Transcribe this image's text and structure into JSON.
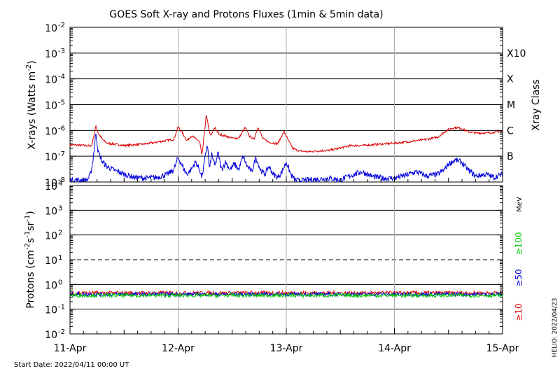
{
  "chart_data": [
    {
      "type": "line",
      "title": "GOES Soft X-ray and Protons Fluxes   (1min & 5min data)",
      "ylabel": "X-rays (Watts m",
      "ylabel_sup": "-2",
      "ylabel_close": ")",
      "y_scale": "log",
      "ylim": [
        1e-08,
        0.01
      ],
      "ytick_exponents": [
        "-2",
        "-3",
        "-4",
        "-5",
        "-6",
        "-7",
        "-8"
      ],
      "ytick_values": [
        0.01,
        0.001,
        0.0001,
        1e-05,
        1e-06,
        1e-07,
        1e-08
      ],
      "xray_class_label": "Xray Class",
      "xray_classes": [
        {
          "label": "X10",
          "value": 0.001
        },
        {
          "label": "X",
          "value": 0.0001
        },
        {
          "label": "M",
          "value": 1e-05
        },
        {
          "label": "C",
          "value": 1e-06
        },
        {
          "label": "B",
          "value": 1e-07
        }
      ],
      "grid": true,
      "series": [
        {
          "color": "#dd0000",
          "x": [
            0.0,
            0.2,
            0.24,
            0.26,
            0.3,
            0.34,
            0.4,
            0.5,
            0.6,
            0.7,
            0.8,
            0.88,
            0.96,
            1.0,
            1.04,
            1.08,
            1.12,
            1.16,
            1.2,
            1.22,
            1.26,
            1.28,
            1.3,
            1.34,
            1.38,
            1.44,
            1.5,
            1.56,
            1.62,
            1.66,
            1.7,
            1.74,
            1.78,
            1.84,
            1.92,
            1.98,
            2.02,
            2.06,
            2.12,
            2.2,
            2.3,
            2.4,
            2.5,
            2.6,
            2.7,
            2.8,
            2.9,
            3.0,
            3.1,
            3.2,
            3.3,
            3.4,
            3.45,
            3.5,
            3.56,
            3.62,
            3.68,
            3.75,
            3.85,
            3.92,
            4.0
          ],
          "y": [
            2.8e-07,
            2.5e-07,
            1.5e-06,
            8e-07,
            4.5e-07,
            3.2e-07,
            3e-07,
            2.6e-07,
            2.8e-07,
            3e-07,
            3.5e-07,
            4e-07,
            4.5e-07,
            1.4e-06,
            8e-07,
            4e-07,
            6e-07,
            5e-07,
            3.5e-07,
            1e-07,
            4e-06,
            1.4e-06,
            6e-07,
            1.3e-06,
            7e-07,
            6e-07,
            5e-07,
            5e-07,
            1.3e-06,
            6e-07,
            4.5e-07,
            1.4e-06,
            5e-07,
            3.5e-07,
            3e-07,
            9e-07,
            4e-07,
            2e-07,
            1.6e-07,
            1.5e-07,
            1.6e-07,
            1.7e-07,
            2.1e-07,
            2.6e-07,
            2.6e-07,
            2.8e-07,
            3e-07,
            3.2e-07,
            3.5e-07,
            4e-07,
            4.5e-07,
            5.5e-07,
            8e-07,
            1.1e-06,
            1.3e-06,
            1.2e-06,
            9e-07,
            8e-07,
            8e-07,
            8.5e-07,
            9.5e-07
          ]
        },
        {
          "color": "#0000dd",
          "x": [
            0.0,
            0.16,
            0.19,
            0.21,
            0.24,
            0.26,
            0.3,
            0.34,
            0.4,
            0.5,
            0.6,
            0.7,
            0.8,
            0.9,
            0.96,
            1.0,
            1.04,
            1.08,
            1.12,
            1.16,
            1.2,
            1.22,
            1.24,
            1.27,
            1.29,
            1.31,
            1.34,
            1.37,
            1.4,
            1.44,
            1.48,
            1.52,
            1.56,
            1.6,
            1.64,
            1.68,
            1.72,
            1.76,
            1.8,
            1.84,
            1.88,
            1.92,
            1.96,
            2.0,
            2.04,
            2.08,
            2.14,
            2.2,
            2.3,
            2.4,
            2.5,
            2.6,
            2.7,
            2.8,
            2.9,
            3.0,
            3.1,
            3.2,
            3.3,
            3.4,
            3.46,
            3.5,
            3.56,
            3.62,
            3.68,
            3.75,
            3.85,
            3.92,
            4.0
          ],
          "y": [
            1.2e-08,
            1.2e-08,
            2e-08,
            6e-08,
            8e-07,
            1.5e-07,
            6e-08,
            4e-08,
            3e-08,
            2e-08,
            1.5e-08,
            1.4e-08,
            1.5e-08,
            2e-08,
            3e-08,
            9e-08,
            4e-08,
            2e-08,
            3e-08,
            6e-08,
            3e-08,
            1.5e-08,
            5e-08,
            3e-07,
            3e-08,
            1.3e-07,
            4e-08,
            1.4e-07,
            3e-08,
            6e-08,
            3e-08,
            5e-08,
            3e-08,
            1e-07,
            4e-08,
            2.5e-08,
            9e-08,
            3e-08,
            2e-08,
            4e-08,
            2e-08,
            1.5e-08,
            2.5e-08,
            6e-08,
            2e-08,
            1.2e-08,
            1.1e-08,
            1.2e-08,
            1.3e-08,
            1.4e-08,
            1.2e-08,
            1.8e-08,
            2.5e-08,
            1.6e-08,
            1.4e-08,
            1.4e-08,
            1.8e-08,
            2.5e-08,
            1.7e-08,
            2e-08,
            3e-08,
            5e-08,
            7e-08,
            6e-08,
            3e-08,
            1.7e-08,
            2e-08,
            1.5e-08,
            2e-08
          ]
        }
      ]
    },
    {
      "type": "line",
      "ylabel": "Protons (cm",
      "ylabel_sup": "-2",
      "ylabel_mid": "s",
      "ylabel_sup2": "-1",
      "ylabel_mid2": "sr",
      "ylabel_sup3": "-1",
      "ylabel_close": ")",
      "y_scale": "log",
      "ylim": [
        0.01,
        10000
      ],
      "ytick_exponents": [
        "4",
        "3",
        "2",
        "1",
        "0",
        "-1",
        "-2"
      ],
      "ytick_values": [
        10000,
        1000,
        100,
        10,
        1,
        0.1,
        0.01
      ],
      "threshold": 10,
      "mev_label": "MeV",
      "energy_labels": [
        {
          "label": "≥100",
          "color": "#00cc00"
        },
        {
          "label": "≥50",
          "color": "#0000dd"
        },
        {
          "label": "≥10",
          "color": "#dd0000"
        }
      ],
      "grid": true,
      "series": [
        {
          "color": "#dd0000",
          "level": 0.45
        },
        {
          "color": "#0000dd",
          "level": 0.4
        },
        {
          "color": "#00cc00",
          "level": 0.36
        }
      ]
    }
  ],
  "x_axis": {
    "categories": [
      "11-Apr",
      "12-Apr",
      "13-Apr",
      "14-Apr",
      "15-Apr"
    ],
    "xlim": [
      0,
      4
    ]
  },
  "footer": {
    "start_date": "Start Date: 2022/04/11 00:00 UT",
    "credit": "HELIO: 2022/04/23"
  },
  "colors": {
    "grid": "#000000",
    "day_grid": "#aaaaaa"
  }
}
